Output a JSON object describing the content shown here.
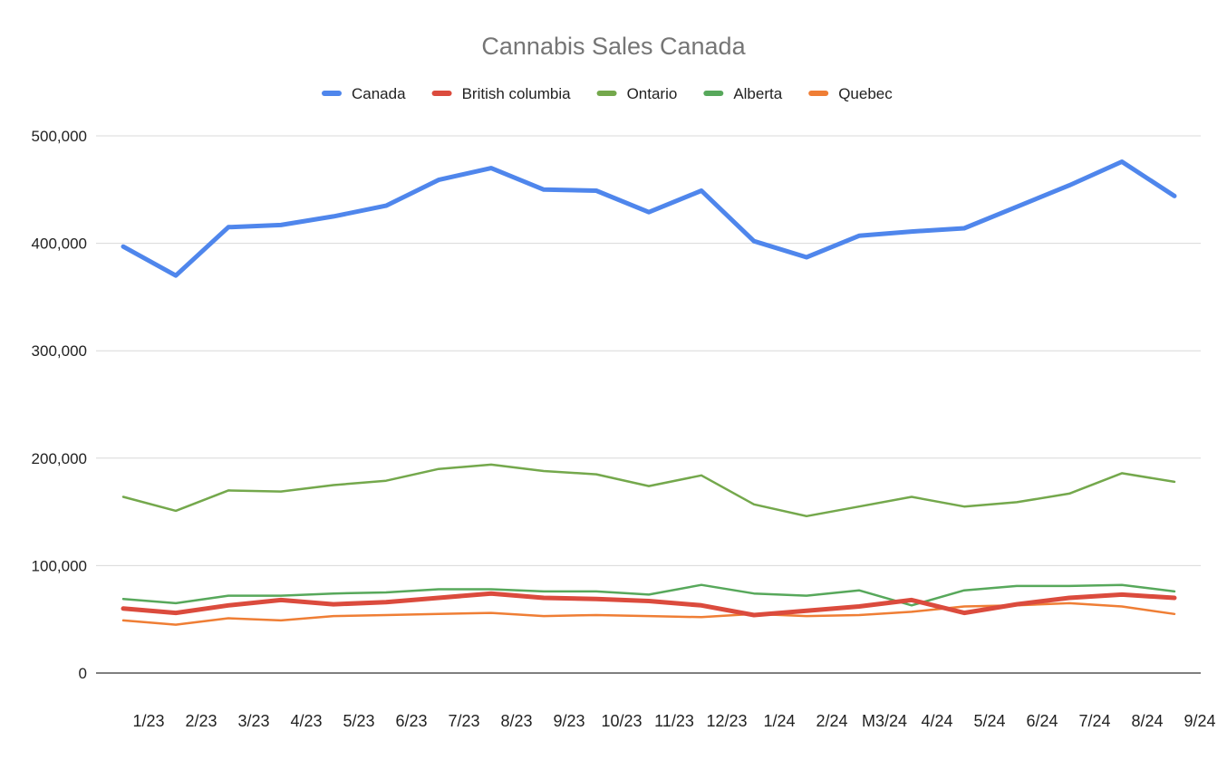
{
  "chart_data": {
    "type": "line",
    "title": "Cannabis Sales Canada",
    "legend_position": "top",
    "grid": true,
    "ylim": [
      0,
      500000
    ],
    "yticks": [
      "0",
      "100,000",
      "200,000",
      "300,000",
      "400,000",
      "500,000"
    ],
    "ytick_values": [
      0,
      100000,
      200000,
      300000,
      400000,
      500000
    ],
    "categories": [
      "1/23",
      "2/23",
      "3/23",
      "4/23",
      "5/23",
      "6/23",
      "7/23",
      "8/23",
      "9/23",
      "10/23",
      "11/23",
      "12/23",
      "1/24",
      "2/24",
      "M3/24",
      "4/24",
      "5/24",
      "6/24",
      "7/24",
      "8/24",
      "9/24"
    ],
    "series": [
      {
        "name": "Canada",
        "color": "#4f86ec",
        "values": [
          397000,
          370000,
          415000,
          417000,
          425000,
          435000,
          459000,
          470000,
          450000,
          449000,
          429000,
          449000,
          402000,
          387000,
          407000,
          411000,
          414000,
          434000,
          454000,
          476000,
          444000
        ]
      },
      {
        "name": "British columbia",
        "color": "#db4b3d",
        "values": [
          60000,
          56000,
          63000,
          68000,
          64000,
          66000,
          70000,
          74000,
          70000,
          69000,
          67000,
          63000,
          54000,
          58000,
          62000,
          68000,
          56000,
          64000,
          70000,
          73000,
          70000
        ]
      },
      {
        "name": "Ontario",
        "color": "#74a84c",
        "values": [
          164000,
          151000,
          170000,
          169000,
          175000,
          179000,
          190000,
          194000,
          188000,
          185000,
          174000,
          184000,
          157000,
          146000,
          155000,
          164000,
          155000,
          159000,
          167000,
          186000,
          178000
        ]
      },
      {
        "name": "Alberta",
        "color": "#57a85b",
        "values": [
          69000,
          65000,
          72000,
          72000,
          74000,
          75000,
          78000,
          78000,
          76000,
          76000,
          73000,
          82000,
          74000,
          72000,
          77000,
          63000,
          77000,
          81000,
          81000,
          82000,
          76000
        ]
      },
      {
        "name": "Quebec",
        "color": "#ef7e35",
        "values": [
          49000,
          45000,
          51000,
          49000,
          53000,
          54000,
          55000,
          56000,
          53000,
          54000,
          53000,
          52000,
          55000,
          53000,
          54000,
          57000,
          62000,
          63000,
          65000,
          62000,
          55000
        ]
      }
    ]
  }
}
